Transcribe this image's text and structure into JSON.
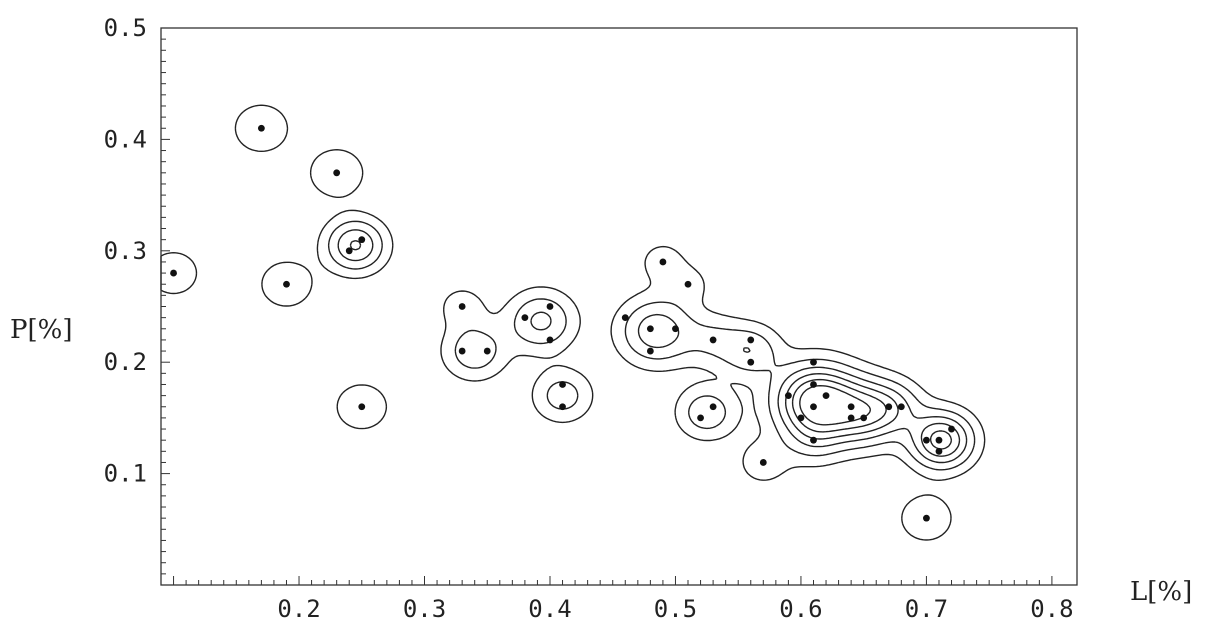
{
  "chart_data": {
    "type": "scatter",
    "xlabel": "L[%]",
    "ylabel": "P[%]",
    "xlim": [
      0.1,
      0.8
    ],
    "ylim": [
      0.0,
      0.5
    ],
    "x_ticks": [
      "0.2",
      "0.3",
      "0.4",
      "0.5",
      "0.6",
      "0.7",
      "0.8"
    ],
    "y_ticks": [
      "0.1",
      "0.2",
      "0.3",
      "0.4",
      "0.5"
    ],
    "x_tick_values": [
      0.2,
      0.3,
      0.4,
      0.5,
      0.6,
      0.7,
      0.8
    ],
    "y_tick_values": [
      0.1,
      0.2,
      0.3,
      0.4,
      0.5
    ],
    "grid": false,
    "contours": true,
    "points": [
      {
        "x": 0.1,
        "y": 0.28
      },
      {
        "x": 0.17,
        "y": 0.41
      },
      {
        "x": 0.23,
        "y": 0.37
      },
      {
        "x": 0.24,
        "y": 0.3
      },
      {
        "x": 0.25,
        "y": 0.31
      },
      {
        "x": 0.19,
        "y": 0.27
      },
      {
        "x": 0.25,
        "y": 0.16
      },
      {
        "x": 0.33,
        "y": 0.25
      },
      {
        "x": 0.33,
        "y": 0.21
      },
      {
        "x": 0.35,
        "y": 0.21
      },
      {
        "x": 0.38,
        "y": 0.24
      },
      {
        "x": 0.4,
        "y": 0.25
      },
      {
        "x": 0.4,
        "y": 0.22
      },
      {
        "x": 0.41,
        "y": 0.18
      },
      {
        "x": 0.41,
        "y": 0.16
      },
      {
        "x": 0.49,
        "y": 0.29
      },
      {
        "x": 0.51,
        "y": 0.27
      },
      {
        "x": 0.46,
        "y": 0.24
      },
      {
        "x": 0.48,
        "y": 0.23
      },
      {
        "x": 0.5,
        "y": 0.23
      },
      {
        "x": 0.48,
        "y": 0.21
      },
      {
        "x": 0.53,
        "y": 0.22
      },
      {
        "x": 0.56,
        "y": 0.22
      },
      {
        "x": 0.56,
        "y": 0.2
      },
      {
        "x": 0.52,
        "y": 0.15
      },
      {
        "x": 0.53,
        "y": 0.16
      },
      {
        "x": 0.57,
        "y": 0.11
      },
      {
        "x": 0.61,
        "y": 0.2
      },
      {
        "x": 0.59,
        "y": 0.17
      },
      {
        "x": 0.61,
        "y": 0.18
      },
      {
        "x": 0.62,
        "y": 0.17
      },
      {
        "x": 0.6,
        "y": 0.15
      },
      {
        "x": 0.61,
        "y": 0.16
      },
      {
        "x": 0.64,
        "y": 0.16
      },
      {
        "x": 0.64,
        "y": 0.15
      },
      {
        "x": 0.65,
        "y": 0.15
      },
      {
        "x": 0.67,
        "y": 0.16
      },
      {
        "x": 0.68,
        "y": 0.16
      },
      {
        "x": 0.61,
        "y": 0.13
      },
      {
        "x": 0.7,
        "y": 0.13
      },
      {
        "x": 0.71,
        "y": 0.13
      },
      {
        "x": 0.71,
        "y": 0.12
      },
      {
        "x": 0.72,
        "y": 0.14
      },
      {
        "x": 0.7,
        "y": 0.06
      }
    ],
    "density_peaks": [
      {
        "x": 0.1,
        "y": 0.28,
        "s": 0.016,
        "w": 0.5
      },
      {
        "x": 0.17,
        "y": 0.41,
        "s": 0.016,
        "w": 0.6
      },
      {
        "x": 0.23,
        "y": 0.37,
        "s": 0.016,
        "w": 0.6
      },
      {
        "x": 0.19,
        "y": 0.27,
        "s": 0.016,
        "w": 0.55
      },
      {
        "x": 0.245,
        "y": 0.305,
        "s": 0.016,
        "w": 1.45
      },
      {
        "x": 0.25,
        "y": 0.16,
        "s": 0.016,
        "w": 0.55
      },
      {
        "x": 0.33,
        "y": 0.25,
        "s": 0.013,
        "w": 0.45
      },
      {
        "x": 0.34,
        "y": 0.21,
        "s": 0.017,
        "w": 0.9
      },
      {
        "x": 0.393,
        "y": 0.237,
        "s": 0.018,
        "w": 1.1
      },
      {
        "x": 0.41,
        "y": 0.17,
        "s": 0.016,
        "w": 0.8
      },
      {
        "x": 0.49,
        "y": 0.29,
        "s": 0.013,
        "w": 0.45
      },
      {
        "x": 0.51,
        "y": 0.27,
        "s": 0.012,
        "w": 0.4
      },
      {
        "x": 0.485,
        "y": 0.228,
        "s": 0.02,
        "w": 1.3
      },
      {
        "x": 0.53,
        "y": 0.22,
        "s": 0.016,
        "w": 0.55
      },
      {
        "x": 0.56,
        "y": 0.21,
        "s": 0.016,
        "w": 0.9
      },
      {
        "x": 0.525,
        "y": 0.155,
        "s": 0.016,
        "w": 0.9
      },
      {
        "x": 0.57,
        "y": 0.11,
        "s": 0.015,
        "w": 0.45
      },
      {
        "x": 0.612,
        "y": 0.165,
        "s": 0.022,
        "w": 2.5
      },
      {
        "x": 0.65,
        "y": 0.155,
        "s": 0.02,
        "w": 1.6
      },
      {
        "x": 0.675,
        "y": 0.16,
        "s": 0.016,
        "w": 0.7
      },
      {
        "x": 0.61,
        "y": 0.13,
        "s": 0.016,
        "w": 0.5
      },
      {
        "x": 0.712,
        "y": 0.13,
        "s": 0.017,
        "w": 2.0
      },
      {
        "x": 0.7,
        "y": 0.06,
        "s": 0.016,
        "w": 0.55
      }
    ],
    "contour_levels": [
      0.26,
      0.6,
      1.0,
      1.4,
      1.8,
      2.2
    ]
  }
}
